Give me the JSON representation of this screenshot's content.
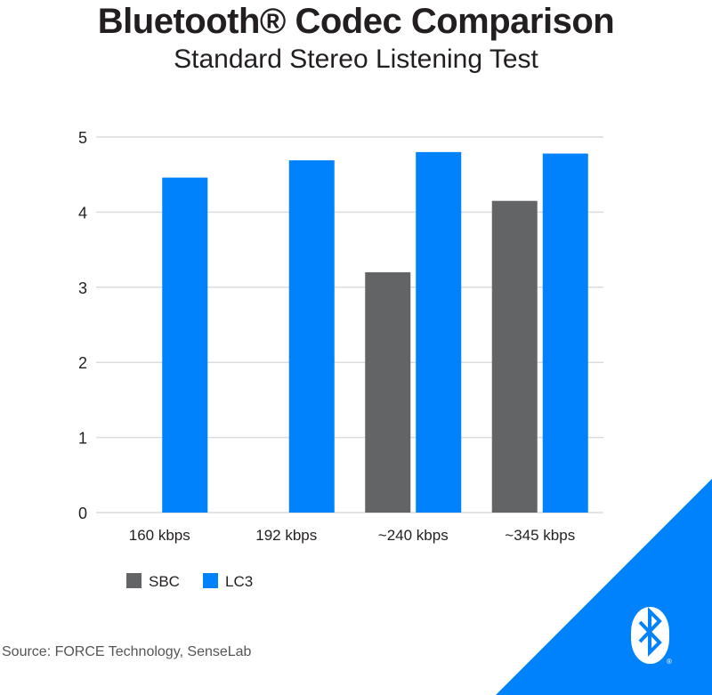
{
  "header": {
    "title": "Bluetooth® Codec Comparison",
    "subtitle": "Standard Stereo Listening Test"
  },
  "source": "Source: FORCE Technology, SenseLab",
  "logo": {
    "icon": "bluetooth-icon",
    "mark": "®"
  },
  "colors": {
    "SBC": "#636466",
    "LC3": "#0082fc",
    "corner": "#0082fc"
  },
  "chart_data": {
    "type": "bar",
    "title": "Bluetooth® Codec Comparison",
    "subtitle": "Standard Stereo Listening Test",
    "categories": [
      "160 kbps",
      "192 kbps",
      "~240 kbps",
      "~345 kbps"
    ],
    "series": [
      {
        "name": "SBC",
        "values": [
          null,
          null,
          3.2,
          4.15
        ]
      },
      {
        "name": "LC3",
        "values": [
          4.46,
          4.69,
          4.8,
          4.78
        ]
      }
    ],
    "ylim": [
      0,
      5
    ],
    "yticks": [
      "0",
      "1",
      "2",
      "3",
      "4",
      "5"
    ],
    "grid": true,
    "legend": "bottom-left"
  }
}
